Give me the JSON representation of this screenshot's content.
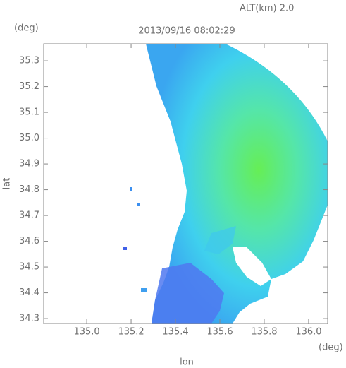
{
  "chart_data": {
    "type": "radar-map",
    "subtitle": "ALT(km) 2.0",
    "title": "2013/09/16 08:02:29",
    "x_label": "lon",
    "y_label": "lat",
    "x_unit": "(deg)",
    "y_unit": "(deg)",
    "xlim": [
      134.806,
      136.086
    ],
    "ylim": [
      34.281,
      35.366
    ],
    "xticks": [
      {
        "value": 135,
        "label": "135.0"
      },
      135.2,
      135.4,
      135.6,
      135.8,
      {
        "value": 136,
        "label": "136.0"
      }
    ],
    "yticks": [
      34.3,
      34.4,
      34.5,
      34.6,
      34.7,
      34.8,
      34.9,
      {
        "value": 35,
        "label": "35.0"
      },
      35.1,
      35.2,
      35.3
    ]
  }
}
